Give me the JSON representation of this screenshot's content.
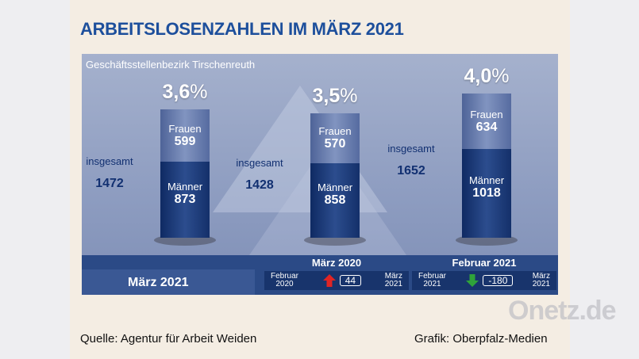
{
  "title": "ARBEITSLOSENZAHLEN IM MÄRZ 2021",
  "subtitle": "Geschäftsstellenbezirk Tirschenreuth",
  "chart_data": {
    "type": "bar",
    "stacked": true,
    "categories": [
      "März 2021",
      "März 2020",
      "Februar 2021"
    ],
    "series": [
      {
        "name": "Männer",
        "values": [
          873,
          858,
          1018
        ]
      },
      {
        "name": "Frauen",
        "values": [
          599,
          570,
          634
        ]
      }
    ],
    "totals": [
      1472,
      1428,
      1652
    ],
    "rates": [
      "3,6",
      "3,5",
      "4,0"
    ],
    "total_label": "insgesamt",
    "pct_sign": "%"
  },
  "current_label": "März 2021",
  "comparisons": [
    {
      "heading": "März 2020",
      "from": [
        "Februar",
        "2020"
      ],
      "to": [
        "März",
        "2021"
      ],
      "change": "44",
      "direction": "up",
      "color": "#e02424"
    },
    {
      "heading": "Februar 2021",
      "from": [
        "Februar",
        "2021"
      ],
      "to": [
        "März",
        "2021"
      ],
      "change": "-180",
      "direction": "down",
      "color": "#2fa33a"
    }
  ],
  "source": "Quelle: Agentur für Arbeit Weiden",
  "credit": "Grafik: Oberpfalz-Medien",
  "watermark": "Onetz.de"
}
